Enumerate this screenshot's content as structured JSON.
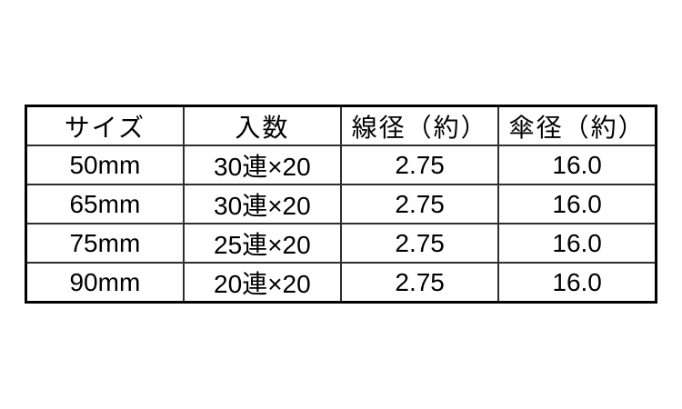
{
  "chart_data": {
    "type": "table",
    "columns": [
      "サイズ",
      "入数",
      "線径（約）",
      "傘径（約）"
    ],
    "rows": [
      [
        "50mm",
        "30連×20",
        "2.75",
        "16.0"
      ],
      [
        "65mm",
        "30連×20",
        "2.75",
        "16.0"
      ],
      [
        "75mm",
        "25連×20",
        "2.75",
        "16.0"
      ],
      [
        "90mm",
        "20連×20",
        "2.75",
        "16.0"
      ]
    ],
    "layout": {
      "equal_column_widths": true,
      "grid": true,
      "header_position": "top"
    }
  },
  "colors": {
    "background": "#ffffff",
    "text": "#000000",
    "border_outer": "#000000",
    "border_inner": "#2e2e2e"
  }
}
